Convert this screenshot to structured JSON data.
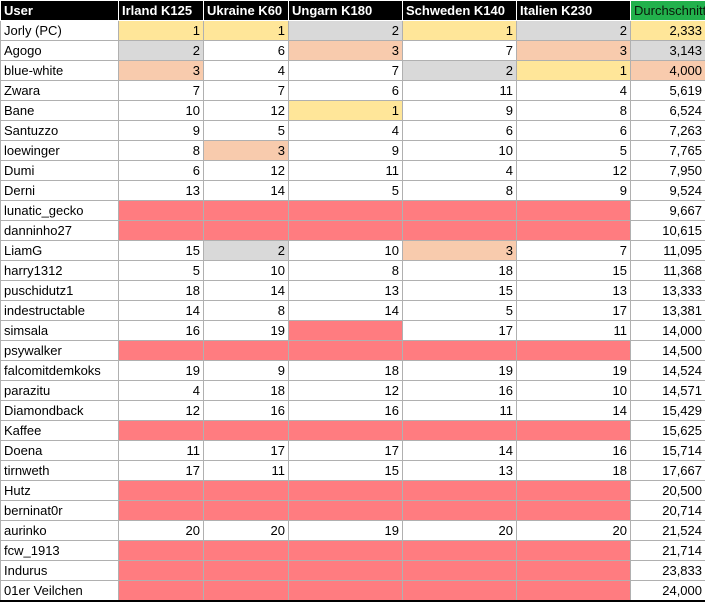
{
  "table": {
    "headers": [
      "User",
      "Irland K125",
      "Ukraine K60",
      "Ungarn K180",
      "Schweden K140",
      "Italien K230",
      "Durchschnitt"
    ],
    "colors": {
      "header_bg": "#000000",
      "header_text": "#ffffff",
      "average_header_bg": "#22b14c",
      "rank_1": "#ffe699",
      "rank_2": "#d9d9d9",
      "rank_3": "#f8cbad",
      "missing_entry": "#ff7c80"
    },
    "rows": [
      {
        "user": "Jorly (PC)",
        "scores": [
          "1",
          "1",
          "2",
          "1",
          "2"
        ],
        "average": "2,333",
        "avg_rank": 1
      },
      {
        "user": "Agogo",
        "scores": [
          "2",
          "6",
          "3",
          "7",
          "3"
        ],
        "average": "3,143",
        "avg_rank": 2
      },
      {
        "user": "blue-white",
        "scores": [
          "3",
          "4",
          "7",
          "2",
          "1"
        ],
        "average": "4,000",
        "avg_rank": 3
      },
      {
        "user": "Zwara",
        "scores": [
          "7",
          "7",
          "6",
          "11",
          "4"
        ],
        "average": "5,619"
      },
      {
        "user": "Bane",
        "scores": [
          "10",
          "12",
          "1",
          "9",
          "8"
        ],
        "average": "6,524"
      },
      {
        "user": "Santuzzo",
        "scores": [
          "9",
          "5",
          "4",
          "6",
          "6"
        ],
        "average": "7,263"
      },
      {
        "user": "loewinger",
        "scores": [
          "8",
          "3",
          "9",
          "10",
          "5"
        ],
        "average": "7,765"
      },
      {
        "user": "Dumi",
        "scores": [
          "6",
          "12",
          "11",
          "4",
          "12"
        ],
        "average": "7,950"
      },
      {
        "user": "Derni",
        "scores": [
          "13",
          "14",
          "5",
          "8",
          "9"
        ],
        "average": "9,524"
      },
      {
        "user": "lunatic_gecko",
        "scores": [
          "",
          "",
          "",
          "",
          ""
        ],
        "average": "9,667"
      },
      {
        "user": "danninho27",
        "scores": [
          "",
          "",
          "",
          "",
          ""
        ],
        "average": "10,615"
      },
      {
        "user": "LiamG",
        "scores": [
          "15",
          "2",
          "10",
          "3",
          "7"
        ],
        "average": "11,095"
      },
      {
        "user": "harry1312",
        "scores": [
          "5",
          "10",
          "8",
          "18",
          "15"
        ],
        "average": "11,368"
      },
      {
        "user": "puschidutz1",
        "scores": [
          "18",
          "14",
          "13",
          "15",
          "13"
        ],
        "average": "13,333"
      },
      {
        "user": "indestructable",
        "scores": [
          "14",
          "8",
          "14",
          "5",
          "17"
        ],
        "average": "13,381"
      },
      {
        "user": "simsala",
        "scores": [
          "16",
          "19",
          "",
          "17",
          "11"
        ],
        "average": "14,000"
      },
      {
        "user": "psywalker",
        "scores": [
          "",
          "",
          "",
          "",
          ""
        ],
        "average": "14,500"
      },
      {
        "user": "falcomitdemkoks",
        "scores": [
          "19",
          "9",
          "18",
          "19",
          "19"
        ],
        "average": "14,524"
      },
      {
        "user": "parazitu",
        "scores": [
          "4",
          "18",
          "12",
          "16",
          "10"
        ],
        "average": "14,571"
      },
      {
        "user": "Diamondback",
        "scores": [
          "12",
          "16",
          "16",
          "11",
          "14"
        ],
        "average": "15,429"
      },
      {
        "user": "Kaffee",
        "scores": [
          "",
          "",
          "",
          "",
          ""
        ],
        "average": "15,625"
      },
      {
        "user": "Doena",
        "scores": [
          "11",
          "17",
          "17",
          "14",
          "16"
        ],
        "average": "15,714"
      },
      {
        "user": "tirnweth",
        "scores": [
          "17",
          "11",
          "15",
          "13",
          "18"
        ],
        "average": "17,667"
      },
      {
        "user": "Hutz",
        "scores": [
          "",
          "",
          "",
          "",
          ""
        ],
        "average": "20,500"
      },
      {
        "user": "berninat0r",
        "scores": [
          "",
          "",
          "",
          "",
          ""
        ],
        "average": "20,714"
      },
      {
        "user": "aurinko",
        "scores": [
          "20",
          "20",
          "19",
          "20",
          "20"
        ],
        "average": "21,524"
      },
      {
        "user": "fcw_1913",
        "scores": [
          "",
          "",
          "",
          "",
          ""
        ],
        "average": "21,714"
      },
      {
        "user": "Indurus",
        "scores": [
          "",
          "",
          "",
          "",
          ""
        ],
        "average": "23,833"
      },
      {
        "user": "01er Veilchen",
        "scores": [
          "",
          "",
          "",
          "",
          ""
        ],
        "average": "24,000"
      }
    ]
  }
}
